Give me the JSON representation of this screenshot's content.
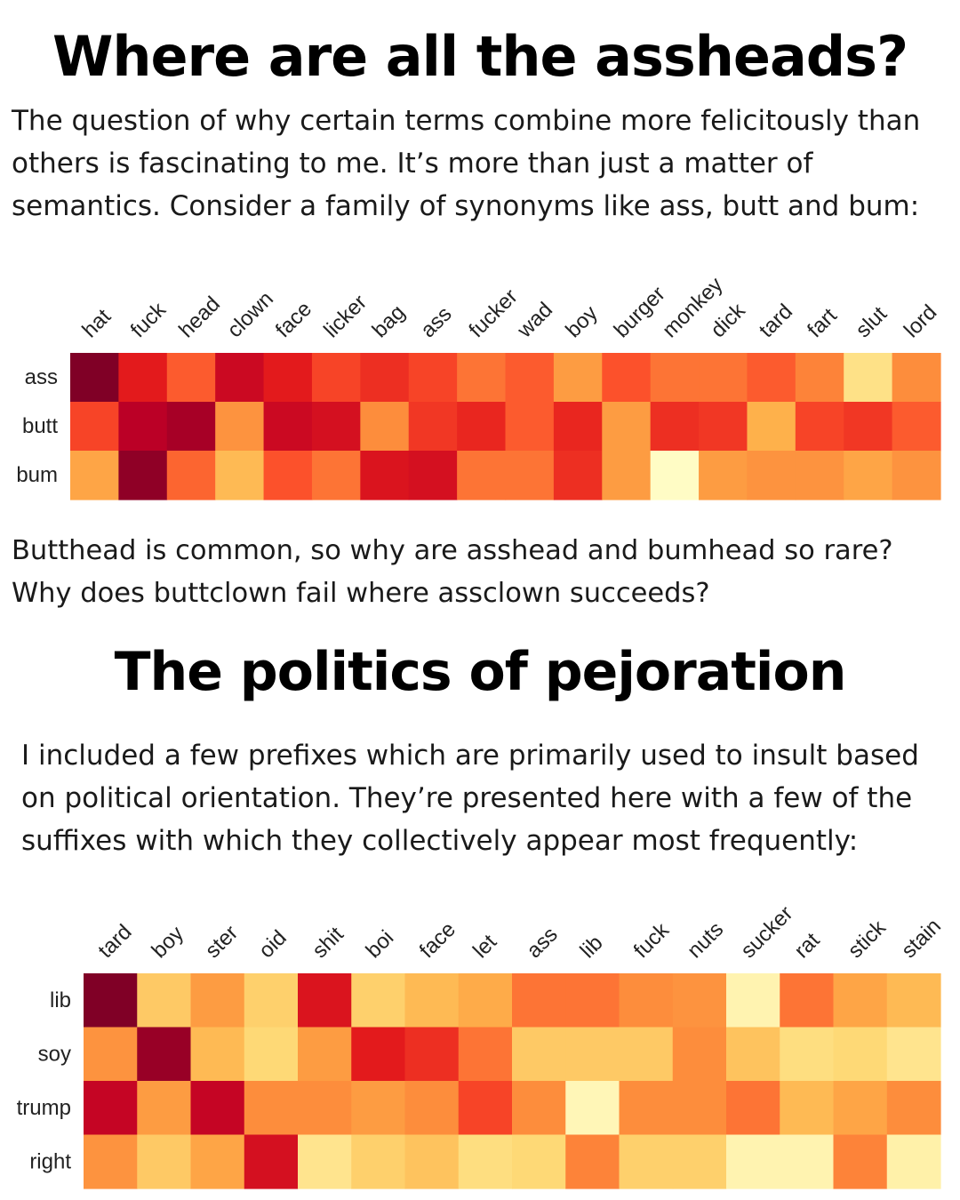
{
  "title1": "Where are all the assheads?",
  "paragraph1": "The question of why certain terms combine more felicitously than others is fascinating to me. It’s more than just a matter of semantics. Consider a family of synonyms like ass, butt and bum:",
  "paragraph2": "Butthead is common, so why are asshead and bumhead so rare? Why does buttclown fail where assclown succeeds?",
  "title2": "The politics of pejoration",
  "paragraph3": "I included a few prefixes which are primarily used to insult based on political orientation. They’re presented here with a few of the suffixes with which they collectively appear most frequently:",
  "chart_data": [
    {
      "type": "heatmap",
      "colormap": [
        "#ffffcc",
        "#ffeda0",
        "#fed976",
        "#feb24c",
        "#fd8d3c",
        "#fc4e2a",
        "#e31a1c",
        "#bd0026",
        "#800026"
      ],
      "x_labels": [
        "hat",
        "fuck",
        "head",
        "clown",
        "face",
        "licker",
        "bag",
        "ass",
        "fucker",
        "wad",
        "boy",
        "burger",
        "monkey",
        "dick",
        "tard",
        "fart",
        "slut",
        "lord"
      ],
      "y_labels": [
        "ass",
        "butt",
        "bum"
      ],
      "values": [
        [
          1.0,
          0.75,
          0.6,
          0.83,
          0.75,
          0.65,
          0.7,
          0.65,
          0.55,
          0.6,
          0.45,
          0.62,
          0.55,
          0.55,
          0.6,
          0.52,
          0.2,
          0.5
        ],
        [
          0.65,
          0.88,
          0.92,
          0.48,
          0.83,
          0.8,
          0.5,
          0.68,
          0.72,
          0.6,
          0.72,
          0.45,
          0.7,
          0.68,
          0.38,
          0.65,
          0.68,
          0.6
        ],
        [
          0.42,
          0.97,
          0.58,
          0.35,
          0.62,
          0.55,
          0.78,
          0.8,
          0.55,
          0.55,
          0.7,
          0.45,
          0.02,
          0.45,
          0.48,
          0.48,
          0.42,
          0.48
        ]
      ]
    },
    {
      "type": "heatmap",
      "colormap": [
        "#ffffcc",
        "#ffeda0",
        "#fed976",
        "#feb24c",
        "#fd8d3c",
        "#fc4e2a",
        "#e31a1c",
        "#bd0026",
        "#800026"
      ],
      "x_labels": [
        "tard",
        "boy",
        "ster",
        "oid",
        "shit",
        "boi",
        "face",
        "let",
        "ass",
        "lib",
        "fuck",
        "nuts",
        "sucker",
        "rat",
        "stick",
        "stain"
      ],
      "y_labels": [
        "lib",
        "soy",
        "trump",
        "right"
      ],
      "values": [
        [
          1.0,
          0.3,
          0.45,
          0.28,
          0.78,
          0.28,
          0.35,
          0.4,
          0.55,
          0.55,
          0.5,
          0.48,
          0.08,
          0.55,
          0.42,
          0.35
        ],
        [
          0.48,
          0.95,
          0.35,
          0.25,
          0.45,
          0.75,
          0.7,
          0.55,
          0.3,
          0.3,
          0.3,
          0.5,
          0.32,
          0.22,
          0.25,
          0.18
        ],
        [
          0.85,
          0.45,
          0.85,
          0.5,
          0.5,
          0.45,
          0.5,
          0.65,
          0.5,
          0.06,
          0.5,
          0.5,
          0.55,
          0.35,
          0.42,
          0.5
        ],
        [
          0.48,
          0.3,
          0.42,
          0.8,
          0.18,
          0.28,
          0.32,
          0.22,
          0.25,
          0.52,
          0.28,
          0.28,
          0.08,
          0.08,
          0.52,
          0.1
        ]
      ]
    }
  ]
}
